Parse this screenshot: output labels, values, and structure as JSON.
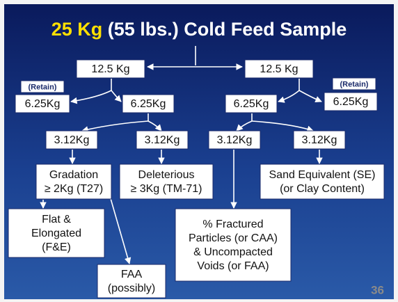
{
  "title": {
    "highlight": "25 Kg",
    "rest": " (55 lbs.) Cold Feed Sample"
  },
  "nodes": [
    {
      "lines": [
        "12.5 Kg"
      ]
    },
    {
      "lines": [
        "12.5 Kg"
      ]
    },
    {
      "lines": [
        "(Retain)"
      ]
    },
    {
      "lines": [
        "6.25Kg"
      ]
    },
    {
      "lines": [
        "6.25Kg"
      ]
    },
    {
      "lines": [
        "6.25Kg"
      ]
    },
    {
      "lines": [
        "(Retain)"
      ]
    },
    {
      "lines": [
        "6.25Kg"
      ]
    },
    {
      "lines": [
        "3.12Kg"
      ]
    },
    {
      "lines": [
        "3.12Kg"
      ]
    },
    {
      "lines": [
        "3.12Kg"
      ]
    },
    {
      "lines": [
        "3.12Kg"
      ]
    },
    {
      "lines": [
        "Gradation",
        "≥ 2Kg (T27)"
      ]
    },
    {
      "lines": [
        "Deleterious",
        "≥ 3Kg (TM-71)"
      ]
    },
    {
      "lines": [
        "Sand Equivalent (SE)",
        "(or Clay Content)"
      ]
    },
    {
      "lines": [
        "Flat &",
        "Elongated",
        "(F&E)"
      ]
    },
    {
      "lines": [
        "% Fractured",
        "Particles (or CAA)",
        "& Uncompacted",
        "Voids (or FAA)"
      ]
    },
    {
      "lines": [
        "FAA",
        "(possibly)"
      ]
    }
  ],
  "page_number": "36"
}
